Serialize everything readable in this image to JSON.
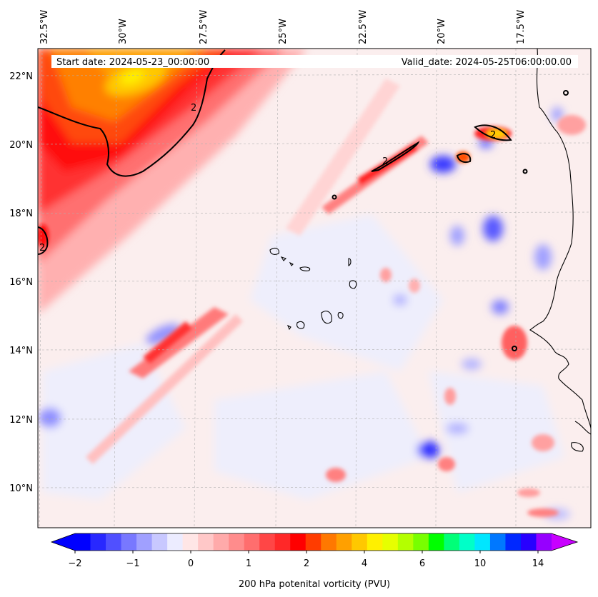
{
  "header": {
    "start_label": "Start date: 2024-05-23_00:00:00",
    "valid_label": "Valid_date: 2024-05-25T06:00:00.00"
  },
  "map": {
    "lon_labels": [
      "32.5°W",
      "30°W",
      "27.5°W",
      "25°W",
      "22.5°W",
      "20°W",
      "17.5°W"
    ],
    "lat_labels": [
      "22°N",
      "20°N",
      "18°N",
      "16°N",
      "14°N",
      "12°N",
      "10°N"
    ],
    "contour_value": "2",
    "gridlines": "dashed",
    "coastline_color": "#000000"
  },
  "colorbar": {
    "tick_labels": [
      "−2",
      "−1",
      "0",
      "1",
      "2",
      "4",
      "6",
      "10",
      "14"
    ],
    "label": "200 hPa potenital vorticity (PVU)",
    "colors": [
      "#0000ff",
      "#2828ff",
      "#5050ff",
      "#7878ff",
      "#a0a0ff",
      "#c8c8ff",
      "#ececff",
      "#ffe6e6",
      "#ffc8c8",
      "#ffaaaa",
      "#ff8c8c",
      "#ff6e6e",
      "#ff4646",
      "#ff2828",
      "#ff0000",
      "#ff3c00",
      "#ff7800",
      "#ffa000",
      "#ffc800",
      "#fff000",
      "#e6ff00",
      "#b4ff00",
      "#78ff00",
      "#00ff00",
      "#00ff78",
      "#00ffc8",
      "#00e6ff",
      "#0078ff",
      "#0028ff",
      "#2800ff",
      "#9600ff"
    ],
    "under_color": "#0000ff",
    "over_color": "#c800ff"
  }
}
